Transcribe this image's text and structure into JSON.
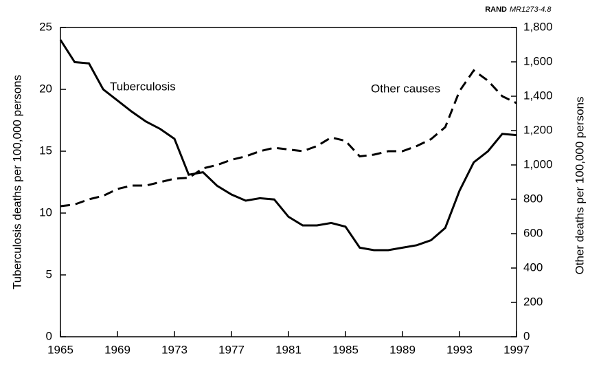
{
  "chart_data": {
    "type": "line",
    "source": "RAND",
    "source_id": "MR1273-4.8",
    "ylabel": "Tuberculosis deaths per 100,000 persons",
    "y2label": "Other deaths per 100,000 persons",
    "x": [
      1965,
      1966,
      1967,
      1968,
      1969,
      1970,
      1971,
      1972,
      1973,
      1974,
      1975,
      1976,
      1977,
      1978,
      1979,
      1980,
      1981,
      1982,
      1983,
      1984,
      1985,
      1986,
      1987,
      1988,
      1989,
      1990,
      1991,
      1992,
      1993,
      1994,
      1995,
      1996,
      1997
    ],
    "xlim": [
      1965,
      1997
    ],
    "xticks": [
      1965,
      1969,
      1973,
      1977,
      1981,
      1985,
      1989,
      1993,
      1997
    ],
    "ylim": [
      0,
      25
    ],
    "yticks": [
      0,
      5,
      10,
      15,
      20,
      25
    ],
    "y2lim": [
      0,
      1800
    ],
    "y2ticks": [
      0,
      {
        "value": 200,
        "label": "200"
      },
      {
        "value": 400,
        "label": "400"
      },
      {
        "value": 600,
        "label": "600"
      },
      {
        "value": 800,
        "label": "800"
      },
      {
        "value": 1000,
        "label": "1,000"
      },
      {
        "value": 1200,
        "label": "1,200"
      },
      {
        "value": 1400,
        "label": "1,400"
      },
      {
        "value": 1600,
        "label": "1,600"
      },
      {
        "value": 1800,
        "label": "1,800"
      }
    ],
    "series": [
      {
        "name": "Tuberculosis",
        "color": "#000000",
        "style": "solid",
        "axis": "y",
        "values": [
          24,
          22.2,
          22.1,
          20,
          19.1,
          18.2,
          17.4,
          16.8,
          16,
          13.1,
          13.3,
          12.2,
          11.5,
          11,
          11.2,
          11.1,
          9.7,
          9,
          9,
          9.2,
          8.9,
          7.2,
          7,
          7,
          7.2,
          7.4,
          7.8,
          8.8,
          11.8,
          14.1,
          15,
          16.4,
          16.3
        ]
      },
      {
        "name": "Other causes",
        "color": "#000000",
        "style": "dashed",
        "axis": "y2",
        "values": [
          760,
          770,
          800,
          820,
          860,
          880,
          880,
          900,
          920,
          925,
          980,
          1000,
          1030,
          1050,
          1080,
          1100,
          1090,
          1080,
          1110,
          1160,
          1140,
          1050,
          1060,
          1080,
          1080,
          1110,
          1150,
          1220,
          1430,
          1550,
          1490,
          1400,
          1360
        ]
      }
    ]
  }
}
